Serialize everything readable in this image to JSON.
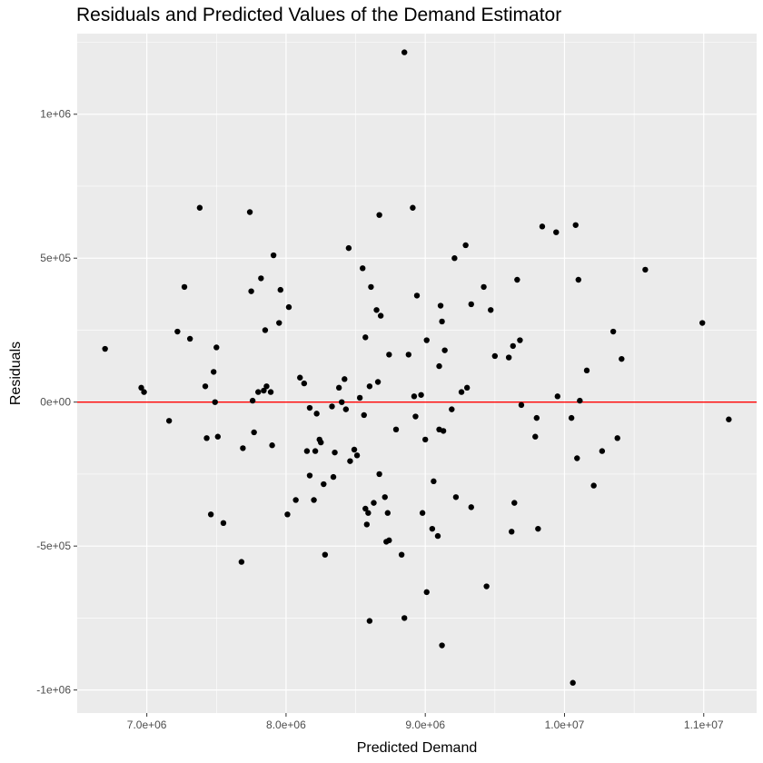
{
  "chart_data": {
    "type": "scatter",
    "title": "Residuals and Predicted Values of the Demand Estimator",
    "xlabel": "Predicted Demand",
    "ylabel": "Residuals",
    "xlim": [
      6500000,
      11380000
    ],
    "ylim": [
      -1080000,
      1280000
    ],
    "x_ticks": [
      {
        "value": 7000000,
        "label": "7.0e+06"
      },
      {
        "value": 8000000,
        "label": "8.0e+06"
      },
      {
        "value": 9000000,
        "label": "9.0e+06"
      },
      {
        "value": 10000000,
        "label": "1.0e+07"
      },
      {
        "value": 11000000,
        "label": "1.1e+07"
      }
    ],
    "y_ticks": [
      {
        "value": -1000000,
        "label": "-1e+06"
      },
      {
        "value": -500000,
        "label": "-5e+05"
      },
      {
        "value": 0,
        "label": "0e+00"
      },
      {
        "value": 500000,
        "label": "5e+05"
      },
      {
        "value": 1000000,
        "label": "1e+06"
      }
    ],
    "reference_line": {
      "y": 0,
      "color": "#ff0000"
    },
    "grid": true,
    "colors": {
      "panel": "#ebebeb",
      "grid": "#ffffff",
      "point": "#000000"
    },
    "points": [
      [
        8850000,
        1215000
      ],
      [
        6700000,
        185000
      ],
      [
        6960000,
        50000
      ],
      [
        6980000,
        35000
      ],
      [
        7160000,
        -65000
      ],
      [
        7220000,
        245000
      ],
      [
        7270000,
        400000
      ],
      [
        7310000,
        220000
      ],
      [
        7380000,
        675000
      ],
      [
        7420000,
        55000
      ],
      [
        7430000,
        -125000
      ],
      [
        7460000,
        -390000
      ],
      [
        7480000,
        105000
      ],
      [
        7490000,
        0
      ],
      [
        7500000,
        190000
      ],
      [
        7510000,
        -120000
      ],
      [
        7550000,
        -420000
      ],
      [
        7680000,
        -555000
      ],
      [
        7690000,
        -160000
      ],
      [
        7740000,
        660000
      ],
      [
        7750000,
        385000
      ],
      [
        7760000,
        5000
      ],
      [
        7770000,
        -105000
      ],
      [
        7800000,
        35000
      ],
      [
        7820000,
        430000
      ],
      [
        7840000,
        40000
      ],
      [
        7850000,
        250000
      ],
      [
        7860000,
        55000
      ],
      [
        7890000,
        35000
      ],
      [
        7900000,
        -150000
      ],
      [
        7910000,
        510000
      ],
      [
        7950000,
        275000
      ],
      [
        7960000,
        390000
      ],
      [
        8010000,
        -390000
      ],
      [
        8020000,
        330000
      ],
      [
        8070000,
        -340000
      ],
      [
        8100000,
        85000
      ],
      [
        8130000,
        65000
      ],
      [
        8150000,
        -170000
      ],
      [
        8170000,
        -20000
      ],
      [
        8170000,
        -255000
      ],
      [
        8200000,
        -340000
      ],
      [
        8210000,
        -170000
      ],
      [
        8220000,
        -40000
      ],
      [
        8240000,
        -130000
      ],
      [
        8250000,
        -140000
      ],
      [
        8270000,
        -285000
      ],
      [
        8280000,
        -530000
      ],
      [
        8330000,
        -15000
      ],
      [
        8340000,
        -260000
      ],
      [
        8350000,
        -175000
      ],
      [
        8380000,
        50000
      ],
      [
        8400000,
        0
      ],
      [
        8420000,
        80000
      ],
      [
        8430000,
        -25000
      ],
      [
        8450000,
        535000
      ],
      [
        8460000,
        -205000
      ],
      [
        8490000,
        -165000
      ],
      [
        8510000,
        -185000
      ],
      [
        8530000,
        15000
      ],
      [
        8550000,
        465000
      ],
      [
        8560000,
        -45000
      ],
      [
        8570000,
        -370000
      ],
      [
        8570000,
        225000
      ],
      [
        8580000,
        -425000
      ],
      [
        8590000,
        -385000
      ],
      [
        8600000,
        -760000
      ],
      [
        8600000,
        55000
      ],
      [
        8610000,
        400000
      ],
      [
        8630000,
        -350000
      ],
      [
        8650000,
        320000
      ],
      [
        8660000,
        70000
      ],
      [
        8670000,
        650000
      ],
      [
        8670000,
        -250000
      ],
      [
        8680000,
        300000
      ],
      [
        8710000,
        -330000
      ],
      [
        8720000,
        -485000
      ],
      [
        8730000,
        -385000
      ],
      [
        8740000,
        165000
      ],
      [
        8740000,
        -480000
      ],
      [
        8790000,
        -95000
      ],
      [
        8830000,
        -530000
      ],
      [
        8850000,
        -750000
      ],
      [
        8880000,
        165000
      ],
      [
        8910000,
        675000
      ],
      [
        8920000,
        20000
      ],
      [
        8930000,
        -50000
      ],
      [
        8940000,
        370000
      ],
      [
        8970000,
        25000
      ],
      [
        8980000,
        -385000
      ],
      [
        9000000,
        -130000
      ],
      [
        9010000,
        215000
      ],
      [
        9010000,
        -660000
      ],
      [
        9050000,
        -440000
      ],
      [
        9060000,
        -275000
      ],
      [
        9090000,
        -465000
      ],
      [
        9100000,
        125000
      ],
      [
        9100000,
        -95000
      ],
      [
        9110000,
        335000
      ],
      [
        9120000,
        280000
      ],
      [
        9120000,
        -845000
      ],
      [
        9130000,
        -100000
      ],
      [
        9140000,
        180000
      ],
      [
        9190000,
        -25000
      ],
      [
        9210000,
        500000
      ],
      [
        9220000,
        -330000
      ],
      [
        9260000,
        35000
      ],
      [
        9290000,
        545000
      ],
      [
        9300000,
        50000
      ],
      [
        9330000,
        340000
      ],
      [
        9330000,
        -365000
      ],
      [
        9420000,
        400000
      ],
      [
        9440000,
        -640000
      ],
      [
        9470000,
        320000
      ],
      [
        9500000,
        160000
      ],
      [
        9600000,
        155000
      ],
      [
        9620000,
        -450000
      ],
      [
        9630000,
        195000
      ],
      [
        9640000,
        -350000
      ],
      [
        9660000,
        425000
      ],
      [
        9680000,
        215000
      ],
      [
        9690000,
        -10000
      ],
      [
        9790000,
        -120000
      ],
      [
        9800000,
        -55000
      ],
      [
        9810000,
        -440000
      ],
      [
        9840000,
        610000
      ],
      [
        9940000,
        590000
      ],
      [
        9950000,
        20000
      ],
      [
        10050000,
        -55000
      ],
      [
        10060000,
        -975000
      ],
      [
        10080000,
        615000
      ],
      [
        10090000,
        -195000
      ],
      [
        10100000,
        425000
      ],
      [
        10110000,
        5000
      ],
      [
        10160000,
        110000
      ],
      [
        10210000,
        -290000
      ],
      [
        10270000,
        -170000
      ],
      [
        10350000,
        245000
      ],
      [
        10380000,
        -125000
      ],
      [
        10410000,
        150000
      ],
      [
        10580000,
        460000
      ],
      [
        10990000,
        275000
      ],
      [
        11180000,
        -60000
      ]
    ]
  }
}
